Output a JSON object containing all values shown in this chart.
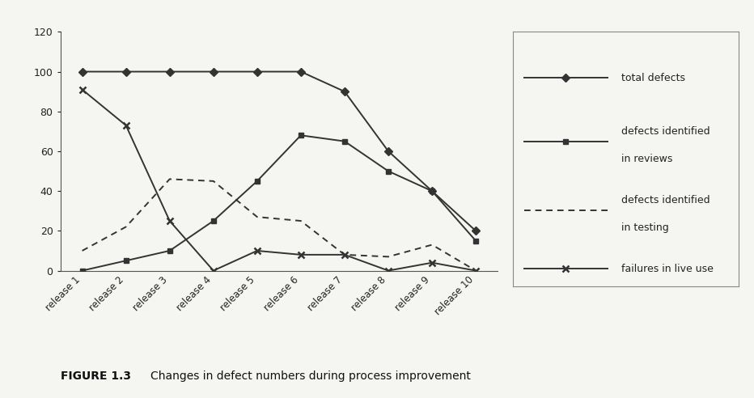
{
  "releases": [
    "release 1",
    "release 2",
    "release 3",
    "release 4",
    "release 5",
    "release 6",
    "release 7",
    "release 8",
    "release 9",
    "release 10"
  ],
  "total_defects": [
    100,
    100,
    100,
    100,
    100,
    100,
    90,
    60,
    40,
    20
  ],
  "defects_reviews": [
    0,
    5,
    10,
    25,
    45,
    68,
    65,
    50,
    40,
    15
  ],
  "defects_testing": [
    10,
    22,
    46,
    45,
    27,
    25,
    8,
    7,
    13,
    0
  ],
  "failures_live": [
    91,
    73,
    25,
    0,
    10,
    8,
    8,
    0,
    4,
    0
  ],
  "ylim": [
    0,
    120
  ],
  "yticks": [
    0,
    20,
    40,
    60,
    80,
    100,
    120
  ],
  "line_color": "#333333",
  "bg_color": "#f5f5f2",
  "caption_bold": "FIGURE 1.3",
  "caption_text": "Changes in defect numbers during process improvement",
  "legend_labels": [
    "total defects",
    "defects identified\nin reviews",
    "defects identified\nin testing",
    "failures in live use"
  ]
}
